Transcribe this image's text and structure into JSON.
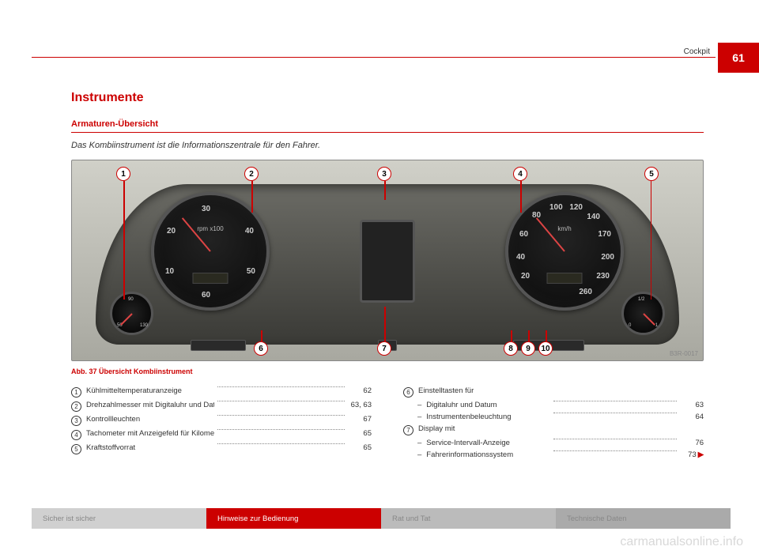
{
  "page": {
    "section": "Cockpit",
    "number": "61"
  },
  "h1": "Instrumente",
  "h2": "Armaturen-Übersicht",
  "lead": "Das Kombiinstrument ist die Informationszentrale für den Fahrer.",
  "fig": {
    "caption": "Abb. 37  Übersicht Kombiinstrument",
    "id": "B3R-0017",
    "rpm": {
      "unit": "rpm x100",
      "ticks": [
        "10",
        "20",
        "30",
        "40",
        "50",
        "60"
      ]
    },
    "speed": {
      "unit": "km/h",
      "ticks": [
        "20",
        "40",
        "60",
        "80",
        "100",
        "120",
        "140",
        "170",
        "200",
        "230",
        "260"
      ]
    },
    "temp": {
      "ticks": [
        "50",
        "90",
        "130"
      ]
    },
    "fuel": {
      "ticks": [
        "0",
        "1/2",
        "1"
      ]
    },
    "callouts": [
      "1",
      "2",
      "3",
      "4",
      "5",
      "6",
      "7",
      "8",
      "9",
      "10"
    ]
  },
  "left": [
    {
      "n": "1",
      "t": "Kühlmitteltemperaturanzeige",
      "p": "62"
    },
    {
      "n": "2",
      "t": "Drehzahlmesser mit Digitaluhr und Datumsanzeige",
      "p": "63, 63"
    },
    {
      "n": "3",
      "t": "Kontrollleuchten",
      "p": "67"
    },
    {
      "n": "4",
      "t": "Tachometer mit Anzeigefeld für Kilometerzähler",
      "p": "65"
    },
    {
      "n": "5",
      "t": "Kraftstoffvorrat",
      "p": "65"
    }
  ],
  "right": [
    {
      "n": "6",
      "t": "Einstelltasten für",
      "sub": [
        {
          "t": "Digitaluhr und Datum",
          "p": "63"
        },
        {
          "t": "Instrumentenbeleuchtung",
          "p": "64"
        }
      ]
    },
    {
      "n": "7",
      "t": "Display mit",
      "sub": [
        {
          "t": "Service-Intervall-Anzeige",
          "p": "76"
        },
        {
          "t": "Fahrerinformationssystem",
          "p": "73",
          "arrow": true
        }
      ]
    }
  ],
  "footer": {
    "f1": "Sicher ist sicher",
    "f2": "Hinweise zur Bedienung",
    "f3": "Rat und Tat",
    "f4": "Technische Daten"
  },
  "watermark": "carmanualsonline.info"
}
